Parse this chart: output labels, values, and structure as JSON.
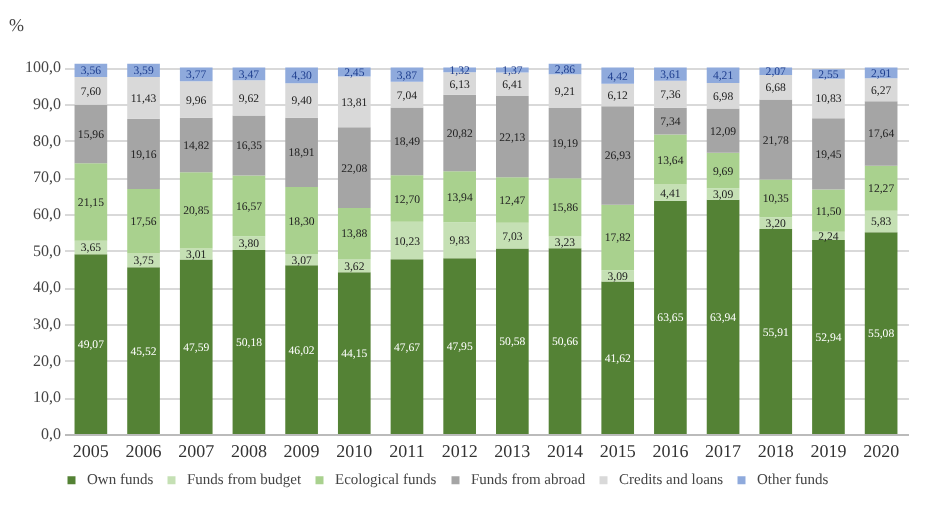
{
  "chart_data": {
    "type": "bar",
    "stacked": true,
    "ylabel": "%",
    "categories": [
      "2005",
      "2006",
      "2007",
      "2008",
      "2009",
      "2010",
      "2011",
      "2012",
      "2013",
      "2014",
      "2015",
      "2016",
      "2017",
      "2018",
      "2019",
      "2020"
    ],
    "ylim": [
      0,
      101.5
    ],
    "yticks": [
      {
        "value": 0,
        "label": "0,0"
      },
      {
        "value": 10,
        "label": "10,0"
      },
      {
        "value": 20,
        "label": "20,0"
      },
      {
        "value": 30,
        "label": "30,0"
      },
      {
        "value": 40,
        "label": "40,0"
      },
      {
        "value": 50,
        "label": "50,0"
      },
      {
        "value": 60,
        "label": "60,0"
      },
      {
        "value": 70,
        "label": "70,0"
      },
      {
        "value": 80,
        "label": "80,0"
      },
      {
        "value": 90,
        "label": "90,0"
      },
      {
        "value": 100,
        "label": "100,0"
      }
    ],
    "grid": "y",
    "legend": "bottom",
    "series": [
      {
        "name": "Own funds",
        "color": "#548235",
        "values": [
          49.07,
          45.52,
          47.59,
          50.18,
          46.02,
          44.15,
          47.67,
          47.95,
          50.58,
          50.66,
          41.62,
          63.65,
          63.94,
          55.91,
          52.94,
          55.08
        ],
        "value_labels": [
          "49,07",
          "45,52",
          "47,59",
          "50,18",
          "46,02",
          "44,15",
          "47,67",
          "47,95",
          "50,58",
          "50,66",
          "41,62",
          "63,65",
          "63,94",
          "55,91",
          "52,94",
          "55,08"
        ]
      },
      {
        "name": "Funds from budget",
        "color": "#c5e0b4",
        "values": [
          3.65,
          3.75,
          3.01,
          3.8,
          3.07,
          3.62,
          10.23,
          9.83,
          7.03,
          3.23,
          3.09,
          4.41,
          3.09,
          3.2,
          2.24,
          5.83
        ],
        "value_labels": [
          "3,65",
          "3,75",
          "3,01",
          "3,80",
          "3,07",
          "3,62",
          "10,23",
          "9,83",
          "7,03",
          "3,23",
          "3,09",
          "4,41",
          "3,09",
          "3,20",
          "2,24",
          "5,83"
        ]
      },
      {
        "name": "Ecological funds",
        "color": "#a9d18e",
        "values": [
          21.15,
          17.56,
          20.85,
          16.57,
          18.3,
          13.88,
          12.7,
          13.94,
          12.47,
          15.86,
          17.82,
          13.64,
          9.69,
          10.35,
          11.5,
          12.27
        ],
        "value_labels": [
          "21,15",
          "17,56",
          "20,85",
          "16,57",
          "18,30",
          "13,88",
          "12,70",
          "13,94",
          "12,47",
          "15,86",
          "17,82",
          "13,64",
          "9,69",
          "10,35",
          "11,50",
          "12,27"
        ]
      },
      {
        "name": "Funds from abroad",
        "color": "#a5a5a5",
        "values": [
          15.96,
          19.16,
          14.82,
          16.35,
          18.91,
          22.08,
          18.49,
          20.82,
          22.13,
          19.19,
          26.93,
          7.34,
          12.09,
          21.78,
          19.45,
          17.64
        ],
        "value_labels": [
          "15,96",
          "19,16",
          "14,82",
          "16,35",
          "18,91",
          "22,08",
          "18,49",
          "20,82",
          "22,13",
          "19,19",
          "26,93",
          "7,34",
          "12,09",
          "21,78",
          "19,45",
          "17,64"
        ]
      },
      {
        "name": "Credits and loans",
        "color": "#d9d9d9",
        "values": [
          7.6,
          11.43,
          9.96,
          9.62,
          9.4,
          13.81,
          7.04,
          6.13,
          6.41,
          9.21,
          6.12,
          7.36,
          6.98,
          6.68,
          10.83,
          6.27
        ],
        "value_labels": [
          "7,60",
          "11,43",
          "9,96",
          "9,62",
          "9,40",
          "13,81",
          "7,04",
          "6,13",
          "6,41",
          "9,21",
          "6,12",
          "7,36",
          "6,98",
          "6,68",
          "10,83",
          "6,27"
        ]
      },
      {
        "name": "Other funds",
        "color": "#8faadc",
        "values": [
          3.56,
          3.59,
          3.77,
          3.47,
          4.3,
          2.45,
          3.87,
          1.32,
          1.37,
          2.86,
          4.42,
          3.61,
          4.21,
          2.07,
          2.55,
          2.91
        ],
        "value_labels": [
          "3,56",
          "3,59",
          "3,77",
          "3,47",
          "4,30",
          "2,45",
          "3,87",
          "1,32",
          "1,37",
          "2,86",
          "4,42",
          "3,61",
          "4,21",
          "2,07",
          "2,55",
          "2,91"
        ]
      }
    ]
  }
}
